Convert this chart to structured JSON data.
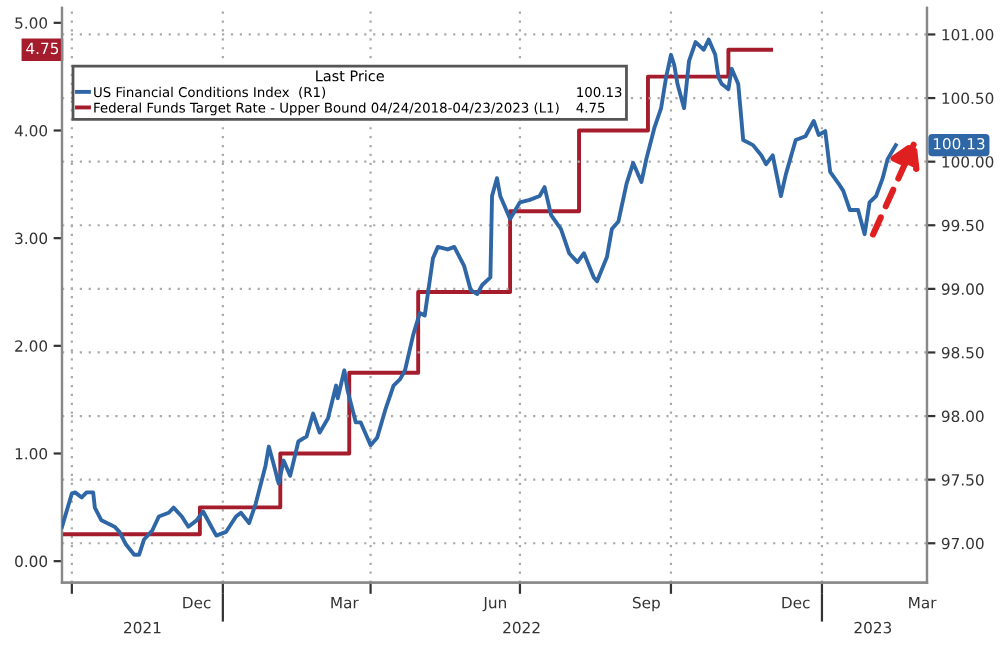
{
  "chart_data": {
    "type": "line",
    "legend_title": "Last Price",
    "annotations": [
      "100.13",
      "4.75"
    ],
    "legend": "top left",
    "grid": true,
    "xlim": [
      "2021-09-25",
      "2023-03-06"
    ],
    "xticks": [
      {
        "value": "2021-10-01",
        "label": null
      },
      {
        "value": "2021-12-16",
        "label": "Dec"
      },
      {
        "value": "2022-01-01",
        "label": null
      },
      {
        "value": "2022-03-16",
        "label": "Mar"
      },
      {
        "value": "2022-04-01",
        "label": null
      },
      {
        "value": "2022-06-16",
        "label": "Jun"
      },
      {
        "value": "2022-07-01",
        "label": null
      },
      {
        "value": "2022-09-16",
        "label": "Sep"
      },
      {
        "value": "2022-10-01",
        "label": null
      },
      {
        "value": "2022-12-16",
        "label": "Dec"
      },
      {
        "value": "2023-01-01",
        "label": null
      },
      {
        "value": "2023-03-03",
        "label": "Mar"
      }
    ],
    "x2lim": [
      "2021-09-25",
      "2023-03-06"
    ],
    "x2ticks": [
      {
        "value": "2021-11-13",
        "label": "2021"
      },
      {
        "value": "2022-01-01",
        "label": null
      },
      {
        "value": "2022-07-02",
        "label": "2022"
      },
      {
        "value": "2023-01-01",
        "label": null
      },
      {
        "value": "2023-02-01",
        "label": "2023"
      }
    ],
    "ylim": [
      -0.2,
      5.14
    ],
    "yticks": [
      {
        "value": 0,
        "label": "0.00"
      },
      {
        "value": 1,
        "label": "1.00"
      },
      {
        "value": 2,
        "label": "2.00"
      },
      {
        "value": 3,
        "label": "3.00"
      },
      {
        "value": 4,
        "label": "4.00"
      },
      {
        "value": 5,
        "label": "5.00"
      }
    ],
    "y2lim": [
      96.69,
      101.21
    ],
    "y2ticks": [
      {
        "value": 97,
        "label": "97.00"
      },
      {
        "value": 97.5,
        "label": "97.50"
      },
      {
        "value": 98,
        "label": "98.00"
      },
      {
        "value": 98.5,
        "label": "98.50"
      },
      {
        "value": 99,
        "label": "99.00"
      },
      {
        "value": 99.5,
        "label": "99.50"
      },
      {
        "value": 100,
        "label": "100.00"
      },
      {
        "value": 100.5,
        "label": "100.50"
      },
      {
        "value": 101,
        "label": "101.00"
      }
    ],
    "series": [
      {
        "name": "US Financial Conditions Index  (R1)",
        "color": "#2f67a6",
        "axis": "y2",
        "x": [
          "2021-09-25",
          "2021-10-01",
          "2021-10-03",
          "2021-10-07",
          "2021-10-10",
          "2021-10-14",
          "2021-10-15",
          "2021-10-19",
          "2021-10-27",
          "2021-10-30",
          "2021-11-03",
          "2021-11-08",
          "2021-11-11",
          "2021-11-14",
          "2021-11-19",
          "2021-11-23",
          "2021-11-29",
          "2021-12-02",
          "2021-12-07",
          "2021-12-11",
          "2021-12-16",
          "2021-12-20",
          "2021-12-25",
          "2021-12-28",
          "2022-01-03",
          "2022-01-09",
          "2022-01-12",
          "2022-01-17",
          "2022-01-21",
          "2022-01-27",
          "2022-01-29",
          "2022-02-01",
          "2022-02-04",
          "2022-02-07",
          "2022-02-11",
          "2022-02-16",
          "2022-02-21",
          "2022-02-25",
          "2022-03-01",
          "2022-03-06",
          "2022-03-11",
          "2022-03-12",
          "2022-03-16",
          "2022-03-18",
          "2022-03-23",
          "2022-03-26",
          "2022-04-01",
          "2022-04-05",
          "2022-04-10",
          "2022-04-15",
          "2022-04-19",
          "2022-04-22",
          "2022-04-27",
          "2022-05-01",
          "2022-05-04",
          "2022-05-09",
          "2022-05-12",
          "2022-05-18",
          "2022-05-22",
          "2022-05-28",
          "2022-06-01",
          "2022-06-05",
          "2022-06-08",
          "2022-06-13",
          "2022-06-14",
          "2022-06-17",
          "2022-06-19",
          "2022-06-25",
          "2022-07-01",
          "2022-07-07",
          "2022-07-13",
          "2022-07-16",
          "2022-07-20",
          "2022-07-26",
          "2022-07-31",
          "2022-08-05",
          "2022-08-09",
          "2022-08-15",
          "2022-08-17",
          "2022-08-23",
          "2022-08-26",
          "2022-08-30",
          "2022-09-04",
          "2022-09-08",
          "2022-09-13",
          "2022-09-16",
          "2022-09-21",
          "2022-09-25",
          "2022-09-28",
          "2022-10-01",
          "2022-10-03",
          "2022-10-05",
          "2022-10-09",
          "2022-10-12",
          "2022-10-16",
          "2022-10-21",
          "2022-10-24",
          "2022-10-28",
          "2022-10-30",
          "2022-11-01",
          "2022-11-05",
          "2022-11-07",
          "2022-11-11",
          "2022-11-13",
          "2022-11-14",
          "2022-11-20",
          "2022-11-25",
          "2022-11-28",
          "2022-12-02",
          "2022-12-07",
          "2022-12-10",
          "2022-12-16",
          "2022-12-22",
          "2022-12-27",
          "2022-12-30",
          "2023-01-03",
          "2023-01-06",
          "2023-01-11",
          "2023-01-14",
          "2023-01-18",
          "2023-01-23",
          "2023-01-27",
          "2023-01-30",
          "2023-02-03",
          "2023-02-07",
          "2023-02-10",
          "2023-02-15"
        ],
        "values": [
          97.13,
          97.39,
          97.4,
          97.36,
          97.4,
          97.4,
          97.28,
          97.18,
          97.13,
          97.09,
          96.99,
          96.91,
          96.91,
          97.03,
          97.1,
          97.21,
          97.24,
          97.28,
          97.21,
          97.13,
          97.18,
          97.25,
          97.13,
          97.06,
          97.09,
          97.21,
          97.24,
          97.16,
          97.31,
          97.61,
          97.76,
          97.62,
          97.47,
          97.65,
          97.53,
          97.8,
          97.84,
          98.02,
          97.87,
          97.98,
          98.24,
          98.14,
          98.36,
          98.2,
          97.95,
          97.95,
          97.77,
          97.83,
          98.05,
          98.24,
          98.29,
          98.36,
          98.64,
          98.81,
          98.79,
          99.24,
          99.33,
          99.31,
          99.33,
          99.18,
          98.99,
          98.96,
          99.03,
          99.09,
          99.73,
          99.87,
          99.73,
          99.55,
          99.68,
          99.7,
          99.73,
          99.8,
          99.58,
          99.47,
          99.28,
          99.21,
          99.28,
          99.09,
          99.06,
          99.25,
          99.47,
          99.53,
          99.83,
          99.99,
          99.84,
          100.02,
          100.27,
          100.42,
          100.66,
          100.84,
          100.76,
          100.61,
          100.42,
          100.79,
          100.94,
          100.88,
          100.96,
          100.84,
          100.66,
          100.61,
          100.57,
          100.73,
          100.61,
          100.32,
          100.17,
          100.13,
          100.05,
          99.98,
          100.05,
          99.73,
          99.9,
          100.17,
          100.2,
          100.32,
          100.21,
          100.24,
          99.92,
          99.83,
          99.77,
          99.62,
          99.62,
          99.43,
          99.68,
          99.73,
          99.87,
          100.02,
          100.13
        ]
      },
      {
        "name": "Federal Funds Target Rate - Upper Bound 04/24/2018-04/23/2023 (L1)",
        "color": "#a51d2d",
        "axis": "y",
        "type": "step",
        "x": [
          "2021-09-25",
          "2021-12-18",
          "2022-02-05",
          "2022-03-19",
          "2022-04-30",
          "2022-06-25",
          "2022-08-06",
          "2022-09-17",
          "2022-11-05",
          "2022-12-01"
        ],
        "values": [
          0.25,
          0.5,
          1.0,
          1.75,
          2.5,
          3.25,
          4.0,
          4.5,
          4.75,
          4.75
        ]
      }
    ]
  }
}
